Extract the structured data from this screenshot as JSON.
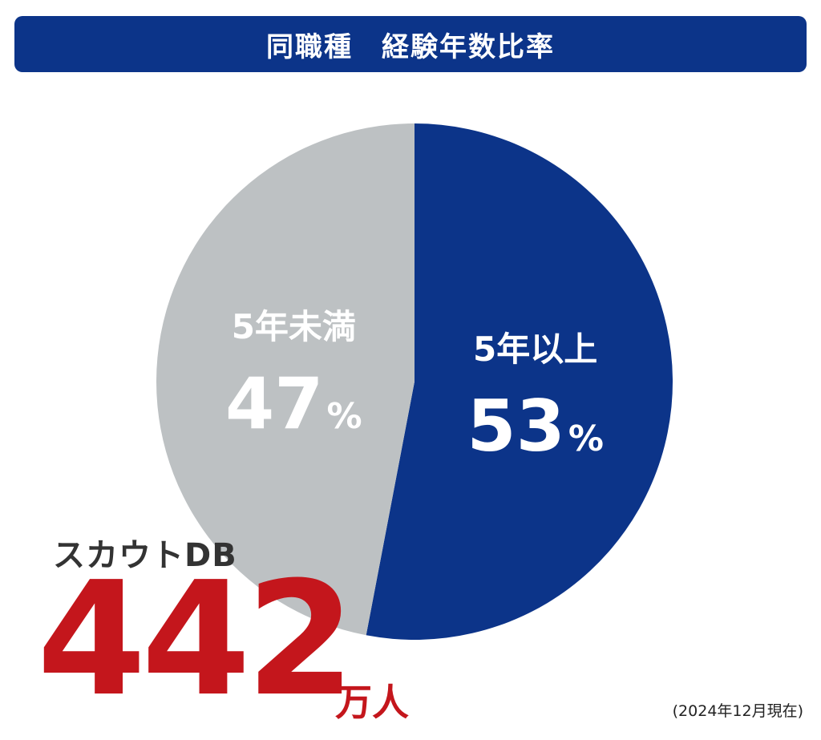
{
  "header": {
    "title": "同職種　経験年数比率"
  },
  "chart_data": {
    "type": "pie",
    "slices": [
      {
        "label": "5年以上",
        "value": 53,
        "display": "53",
        "unit": "%",
        "color": "#0c3489"
      },
      {
        "label": "5年未満",
        "value": 47,
        "display": "47",
        "unit": "%",
        "color": "#bdc1c3"
      }
    ]
  },
  "database": {
    "label": "スカウトDB",
    "count": "442",
    "unit": "万人"
  },
  "footnote": "(2024年12月現在)"
}
